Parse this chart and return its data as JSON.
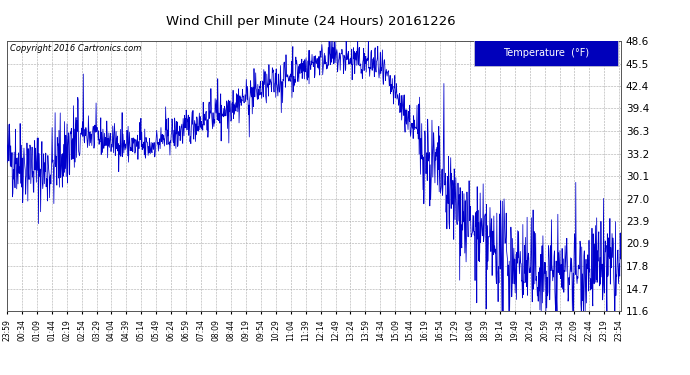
{
  "title": "Wind Chill per Minute (24 Hours) 20161226",
  "copyright_text": "Copyright 2016 Cartronics.com",
  "legend_label": "Temperature  (°F)",
  "line_color": "#0000cc",
  "legend_bg": "#0000bb",
  "legend_text_color": "#ffffff",
  "background_color": "#ffffff",
  "grid_color": "#aaaaaa",
  "ylim": [
    11.6,
    48.6
  ],
  "yticks": [
    11.6,
    14.7,
    17.8,
    20.9,
    23.9,
    27.0,
    30.1,
    33.2,
    36.3,
    39.4,
    42.4,
    45.5,
    48.6
  ],
  "num_points": 1440,
  "seed": 42,
  "tick_step": 35
}
